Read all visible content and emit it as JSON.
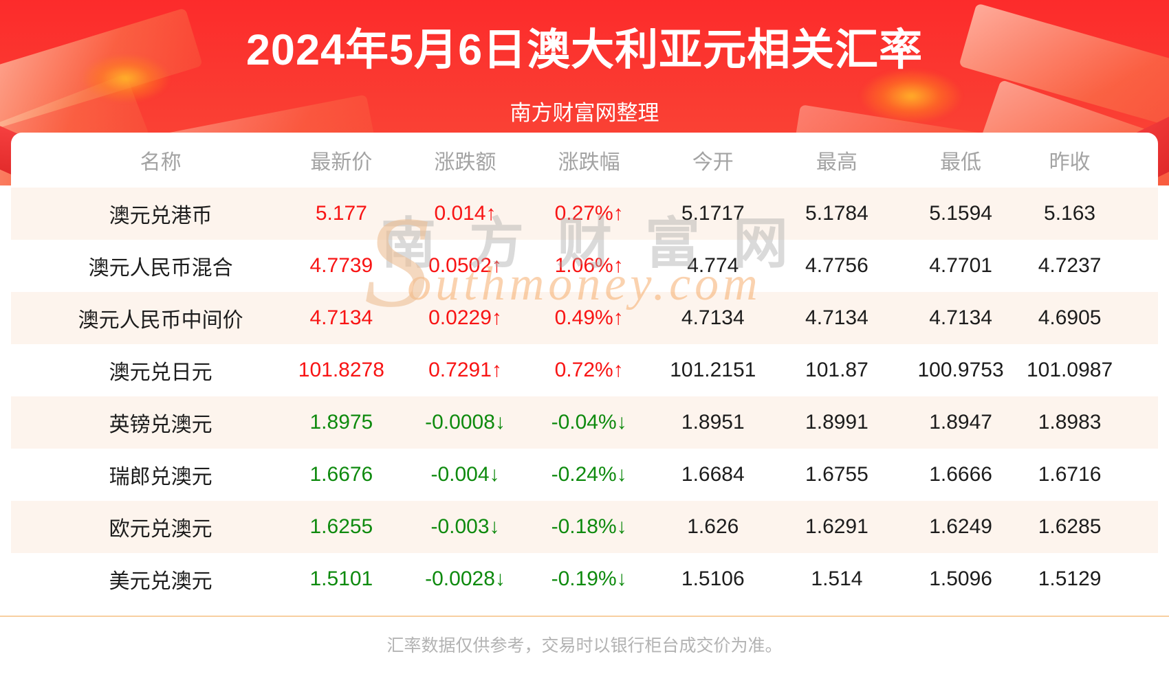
{
  "page": {
    "title": "2024年5月6日澳大利亚元相关汇率",
    "subtitle": "南方财富网整理",
    "footer_note": "汇率数据仅供参考，交易时以银行柜台成交价为准。"
  },
  "watermark": {
    "initial": "S",
    "cjk": "南方财富网",
    "latin": "outhmoney.com"
  },
  "colors": {
    "hero_top": "#fc2b2b",
    "hero_bottom": "#f94a38",
    "up": "#f81414",
    "down": "#0e8a0e",
    "row_alt": "#fdf4ed",
    "divider": "#f8cfa0",
    "header_gray": "#a3a3a3",
    "footer_gray": "#b3b3b3",
    "ink": "#1c1c1c"
  },
  "table": {
    "columns": [
      "名称",
      "最新价",
      "涨跌额",
      "涨跌幅",
      "今开",
      "最高",
      "最低",
      "昨收"
    ],
    "row_keys": [
      "name",
      "latest",
      "change",
      "pct",
      "open",
      "high",
      "low",
      "prev_close"
    ],
    "colored_keys": [
      "latest",
      "change",
      "pct"
    ],
    "rows": [
      {
        "name": "澳元兑港币",
        "latest": "5.177",
        "change": "0.014↑",
        "pct": "0.27%↑",
        "open": "5.1717",
        "high": "5.1784",
        "low": "5.1594",
        "prev_close": "5.163",
        "trend": "up"
      },
      {
        "name": "澳元人民币混合",
        "latest": "4.7739",
        "change": "0.0502↑",
        "pct": "1.06%↑",
        "open": "4.774",
        "high": "4.7756",
        "low": "4.7701",
        "prev_close": "4.7237",
        "trend": "up"
      },
      {
        "name": "澳元人民币中间价",
        "latest": "4.7134",
        "change": "0.0229↑",
        "pct": "0.49%↑",
        "open": "4.7134",
        "high": "4.7134",
        "low": "4.7134",
        "prev_close": "4.6905",
        "trend": "up"
      },
      {
        "name": "澳元兑日元",
        "latest": "101.8278",
        "change": "0.7291↑",
        "pct": "0.72%↑",
        "open": "101.2151",
        "high": "101.87",
        "low": "100.9753",
        "prev_close": "101.0987",
        "trend": "up"
      },
      {
        "name": "英镑兑澳元",
        "latest": "1.8975",
        "change": "-0.0008↓",
        "pct": "-0.04%↓",
        "open": "1.8951",
        "high": "1.8991",
        "low": "1.8947",
        "prev_close": "1.8983",
        "trend": "down"
      },
      {
        "name": "瑞郎兑澳元",
        "latest": "1.6676",
        "change": "-0.004↓",
        "pct": "-0.24%↓",
        "open": "1.6684",
        "high": "1.6755",
        "low": "1.6666",
        "prev_close": "1.6716",
        "trend": "down"
      },
      {
        "name": "欧元兑澳元",
        "latest": "1.6255",
        "change": "-0.003↓",
        "pct": "-0.18%↓",
        "open": "1.626",
        "high": "1.6291",
        "low": "1.6249",
        "prev_close": "1.6285",
        "trend": "down"
      },
      {
        "name": "美元兑澳元",
        "latest": "1.5101",
        "change": "-0.0028↓",
        "pct": "-0.19%↓",
        "open": "1.5106",
        "high": "1.514",
        "low": "1.5096",
        "prev_close": "1.5129",
        "trend": "down"
      }
    ]
  }
}
